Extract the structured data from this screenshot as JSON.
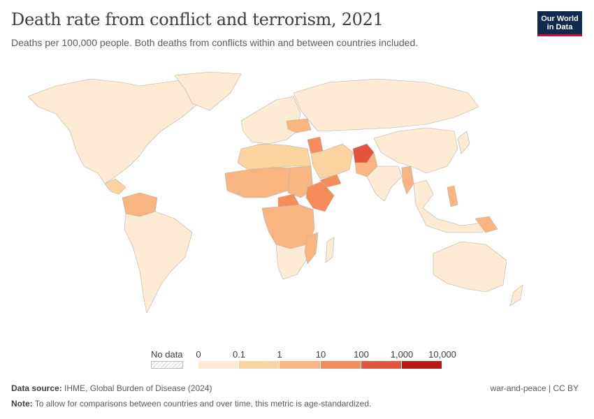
{
  "title": "Death rate from conflict and terrorism, 2021",
  "subtitle": "Deaths per 100,000 people. Both deaths from conflicts within and between countries included.",
  "logo": {
    "line1": "Our World",
    "line2": "in Data"
  },
  "legend": {
    "no_data_label": "No data",
    "tick_labels": [
      "0",
      "0.1",
      "1",
      "10",
      "100",
      "1,000",
      "10,000"
    ],
    "colors": [
      "#fdebd3",
      "#fbd39e",
      "#f9b581",
      "#f58c5a",
      "#e3543b",
      "#c01515"
    ]
  },
  "regions": [
    {
      "name": "North America",
      "bin": 0
    },
    {
      "name": "Greenland",
      "bin": 0
    },
    {
      "name": "Central America",
      "bin": 1
    },
    {
      "name": "Colombia / Venezuela",
      "bin": 2
    },
    {
      "name": "South America",
      "bin": 0
    },
    {
      "name": "Europe",
      "bin": 0
    },
    {
      "name": "Ukraine",
      "bin": 2
    },
    {
      "name": "Russia",
      "bin": 0
    },
    {
      "name": "North Africa",
      "bin": 1
    },
    {
      "name": "Sahel",
      "bin": 2
    },
    {
      "name": "Sudan",
      "bin": 2
    },
    {
      "name": "Ethiopia",
      "bin": 3
    },
    {
      "name": "Central African Republic",
      "bin": 3
    },
    {
      "name": "Central Africa",
      "bin": 2
    },
    {
      "name": "Southern Africa",
      "bin": 0
    },
    {
      "name": "Mozambique",
      "bin": 2
    },
    {
      "name": "Syria",
      "bin": 3
    },
    {
      "name": "Yemen",
      "bin": 3
    },
    {
      "name": "Iraq / Iran region",
      "bin": 1
    },
    {
      "name": "Afghanistan",
      "bin": 4
    },
    {
      "name": "Pakistan",
      "bin": 2
    },
    {
      "name": "South Asia",
      "bin": 0
    },
    {
      "name": "Myanmar",
      "bin": 2
    },
    {
      "name": "China",
      "bin": 0
    },
    {
      "name": "Southeast Asia",
      "bin": 0
    },
    {
      "name": "Philippines",
      "bin": 2
    },
    {
      "name": "Papua New Guinea",
      "bin": 2
    },
    {
      "name": "Australia",
      "bin": 0
    }
  ],
  "footer": {
    "source_label": "Data source:",
    "source_text": "IHME, Global Burden of Disease (2024)",
    "note_label": "Note:",
    "note_text": "To allow for comparisons between countries and over time, this metric is age-standardized.",
    "right_text": "war-and-peace | CC BY"
  }
}
